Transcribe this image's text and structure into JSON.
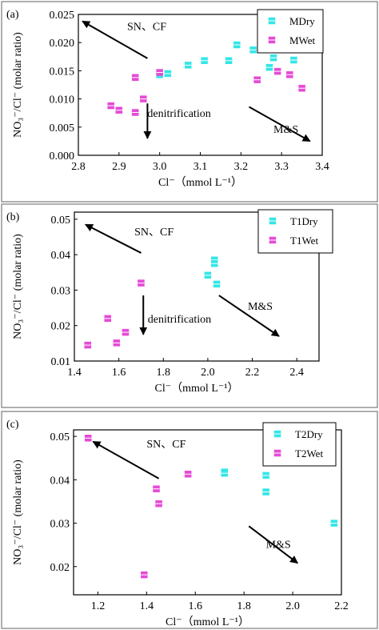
{
  "chart_data": [
    {
      "type": "scatter",
      "panel_label": "(a)",
      "xlabel": "Cl⁻（mmol L⁻¹）",
      "ylabel": "NO₃⁻/Cl⁻ (molar ratio)",
      "xlim": [
        2.8,
        3.4
      ],
      "ylim": [
        0.0,
        0.025
      ],
      "xticks": [
        "2.8",
        "2.9",
        "3.0",
        "3.1",
        "3.2",
        "3.3",
        "3.4"
      ],
      "yticks": [
        "0.000",
        "0.005",
        "0.010",
        "0.015",
        "0.020",
        "0.025"
      ],
      "legend_position": "top-right",
      "series": [
        {
          "name": "MDry",
          "color": "#33e6e6",
          "points": [
            [
              3.0,
              0.0143
            ],
            [
              3.02,
              0.0145
            ],
            [
              3.07,
              0.016
            ],
            [
              3.11,
              0.0168
            ],
            [
              3.17,
              0.0168
            ],
            [
              3.19,
              0.0196
            ],
            [
              3.23,
              0.0187
            ],
            [
              3.27,
              0.0156
            ],
            [
              3.28,
              0.0173
            ],
            [
              3.33,
              0.0169
            ]
          ]
        },
        {
          "name": "MWet",
          "color": "#e64ad6",
          "points": [
            [
              2.88,
              0.0088
            ],
            [
              2.9,
              0.008
            ],
            [
              2.94,
              0.0076
            ],
            [
              2.94,
              0.0138
            ],
            [
              2.96,
              0.01
            ],
            [
              3.0,
              0.0147
            ],
            [
              3.24,
              0.0134
            ],
            [
              3.29,
              0.0149
            ],
            [
              3.32,
              0.0143
            ],
            [
              3.35,
              0.0119
            ]
          ]
        }
      ],
      "annotations": [
        {
          "text": "SN、CF",
          "x": 2.92,
          "y": 0.0222
        },
        {
          "text": "denitrification",
          "x": 2.97,
          "y": 0.0068
        },
        {
          "text": "M&S",
          "x": 3.28,
          "y": 0.004
        }
      ],
      "arrows": [
        {
          "from": [
            2.97,
            0.0172
          ],
          "to": [
            2.81,
            0.0238
          ]
        },
        {
          "from": [
            2.97,
            0.0092
          ],
          "to": [
            2.97,
            0.003
          ]
        },
        {
          "from": [
            3.22,
            0.0086
          ],
          "to": [
            3.37,
            0.0025
          ]
        }
      ]
    },
    {
      "type": "scatter",
      "panel_label": "(b)",
      "xlabel": "Cl⁻（mmol L⁻¹）",
      "ylabel": "NO₃⁻/Cl⁻ (molar ratio)",
      "xlim": [
        1.4,
        2.5
      ],
      "ylim": [
        0.01,
        0.052
      ],
      "xticks": [
        "1.4",
        "1.6",
        "1.8",
        "2.0",
        "2.2",
        "2.4"
      ],
      "yticks": [
        "0.01",
        "0.02",
        "0.03",
        "0.04",
        "0.05"
      ],
      "legend_position": "top-right",
      "series": [
        {
          "name": "T1Dry",
          "color": "#33e6e6",
          "points": [
            [
              2.0,
              0.0342
            ],
            [
              2.03,
              0.0385
            ],
            [
              2.03,
              0.0375
            ],
            [
              2.04,
              0.0317
            ]
          ]
        },
        {
          "name": "T1Wet",
          "color": "#e64ad6",
          "points": [
            [
              1.46,
              0.0145
            ],
            [
              1.55,
              0.022
            ],
            [
              1.59,
              0.0151
            ],
            [
              1.63,
              0.0181
            ],
            [
              1.7,
              0.032
            ]
          ]
        }
      ],
      "annotations": [
        {
          "text": "SN、CF",
          "x": 1.67,
          "y": 0.0454
        },
        {
          "text": "denitrification",
          "x": 1.73,
          "y": 0.0208
        },
        {
          "text": "M&S",
          "x": 2.18,
          "y": 0.0244
        }
      ],
      "arrows": [
        {
          "from": [
            1.7,
            0.0405
          ],
          "to": [
            1.45,
            0.0485
          ]
        },
        {
          "from": [
            1.71,
            0.0285
          ],
          "to": [
            1.71,
            0.0175
          ]
        },
        {
          "from": [
            2.05,
            0.0285
          ],
          "to": [
            2.32,
            0.017
          ]
        }
      ]
    },
    {
      "type": "scatter",
      "panel_label": "(c)",
      "xlabel": "Cl⁻（mmol L⁻¹）",
      "ylabel": "NO₃⁻/Cl⁻ (molar ratio)",
      "xlim": [
        1.1,
        2.2
      ],
      "ylim": [
        0.0135,
        0.0515
      ],
      "xticks": [
        "1.2",
        "1.4",
        "1.6",
        "1.8",
        "2.0",
        "2.2"
      ],
      "yticks": [
        "0.02",
        "0.03",
        "0.04",
        "0.05"
      ],
      "legend_position": "top-right",
      "series": [
        {
          "name": "T2Dry",
          "color": "#33e6e6",
          "points": [
            [
              1.72,
              0.0418
            ],
            [
              1.72,
              0.0415
            ],
            [
              1.89,
              0.0372
            ],
            [
              1.89,
              0.041
            ],
            [
              2.17,
              0.03
            ]
          ]
        },
        {
          "name": "T2Wet",
          "color": "#e64ad6",
          "points": [
            [
              1.16,
              0.0496
            ],
            [
              1.39,
              0.0181
            ],
            [
              1.44,
              0.0379
            ],
            [
              1.45,
              0.0345
            ],
            [
              1.57,
              0.0413
            ]
          ]
        }
      ],
      "annotations": [
        {
          "text": "SN、CF",
          "x": 1.4,
          "y": 0.0474
        },
        {
          "text": "M&S",
          "x": 1.89,
          "y": 0.0243
        }
      ],
      "arrows": [
        {
          "from": [
            1.45,
            0.0403
          ],
          "to": [
            1.18,
            0.0488
          ]
        },
        {
          "from": [
            1.82,
            0.0293
          ],
          "to": [
            2.02,
            0.0208
          ]
        }
      ]
    }
  ]
}
